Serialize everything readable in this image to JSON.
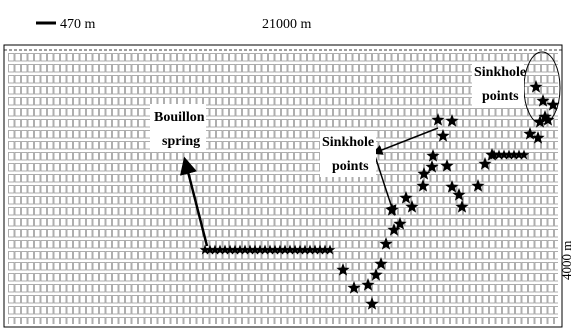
{
  "scale": {
    "bar_label": "470 m",
    "width_label": "21000 m",
    "height_label": "4000 m"
  },
  "annotations": {
    "bouillon_line1": "Bouillon",
    "bouillon_line2": "spring",
    "sinkhole_mid_line1": "Sinkhole",
    "sinkhole_mid_line2": "points",
    "sinkhole_right_line1": "Sinkhole",
    "sinkhole_right_line2": "points"
  },
  "legend_icons": {
    "star": "star-icon",
    "grid_node": "grid-node-icon"
  },
  "colors": {
    "ink": "#000000",
    "grid": "#9a9a9a",
    "background": "#ffffff"
  }
}
